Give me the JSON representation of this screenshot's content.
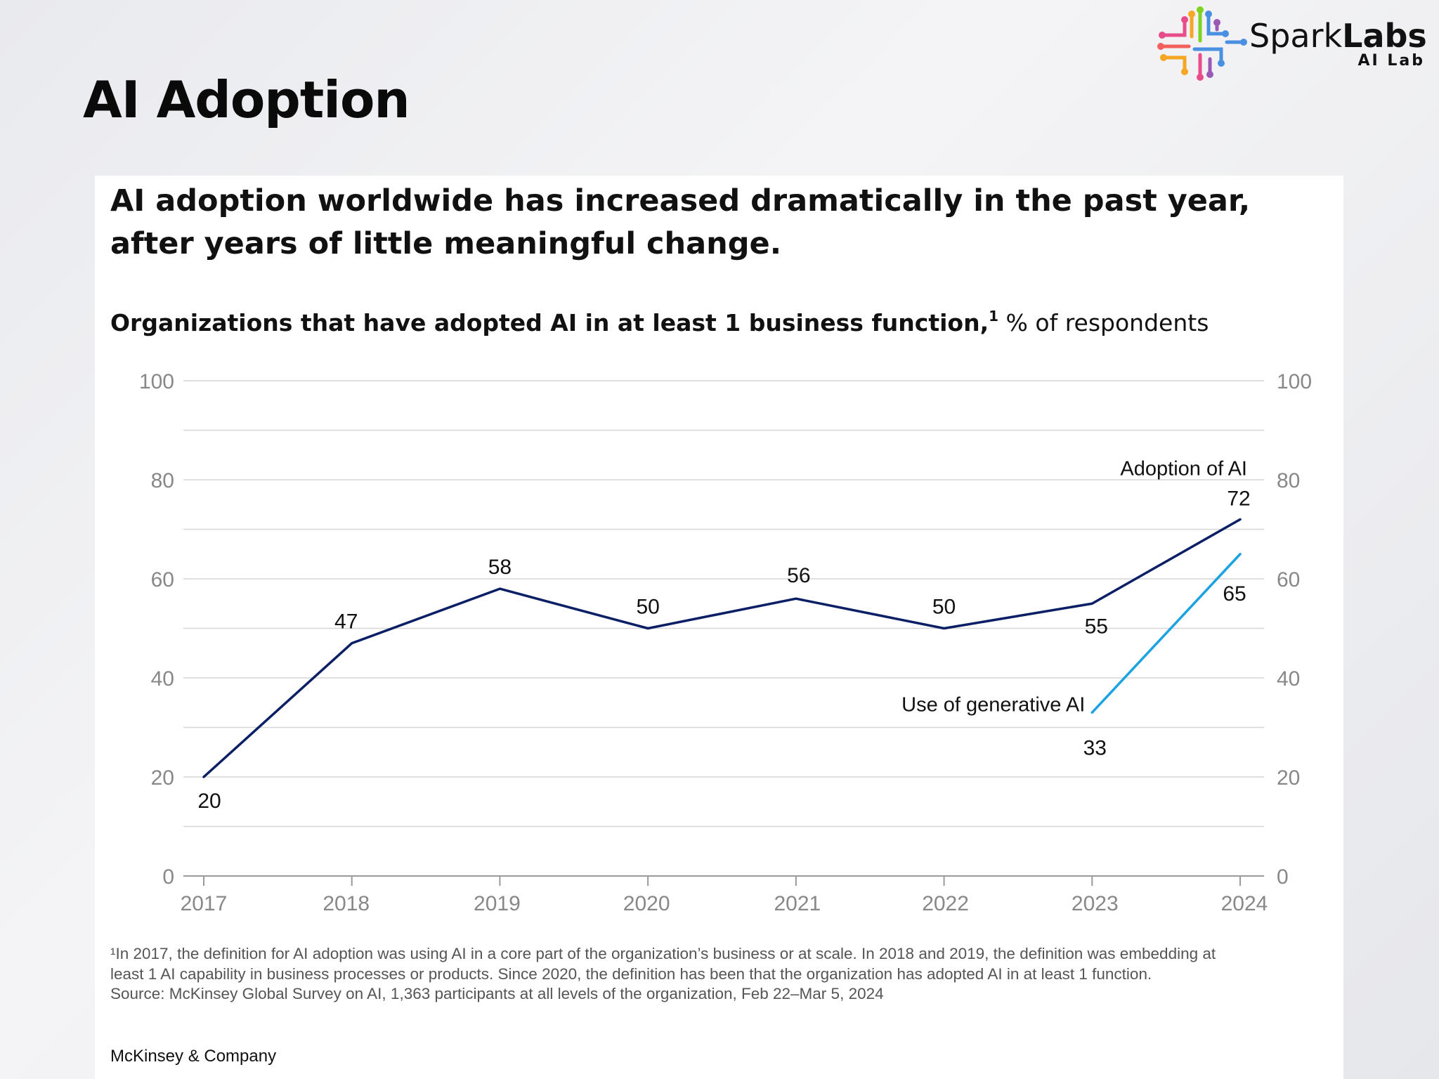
{
  "page_title": "AI Adoption",
  "logo": {
    "name_part1": "Spark",
    "name_part2": "Labs",
    "subtext": "AI Lab",
    "colors": [
      "#e84c8b",
      "#f5a623",
      "#4a90e2",
      "#7ed321",
      "#9b59b6"
    ]
  },
  "card": {
    "headline": "AI adoption worldwide has increased dramatically in the past year, after years of little meaningful change.",
    "subtitle_main": "Organizations that have adopted AI in at least 1 business function,",
    "subtitle_sup": "1",
    "subtitle_unit": " % of respondents",
    "footnotes": [
      "¹In 2017, the definition for AI adoption was using AI in a core part of the organization’s business or at scale. In 2018 and 2019, the definition was embedding at",
      " least 1 AI capability in business processes or products. Since 2020, the definition has been that the organization has adopted AI in at least 1 function.",
      " Source: McKinsey Global Survey on AI, 1,363 participants at all levels of the organization, Feb 22–Mar 5, 2024"
    ],
    "brand": "McKinsey & Company"
  },
  "chart_data": {
    "type": "line",
    "x": [
      "2017",
      "2018",
      "2019",
      "2020",
      "2021",
      "2022",
      "2023",
      "2024"
    ],
    "ylim": [
      0,
      100
    ],
    "yticks": [
      0,
      20,
      40,
      60,
      80,
      100
    ],
    "gridlines": [
      0,
      10,
      20,
      30,
      40,
      50,
      60,
      70,
      80,
      90,
      100
    ],
    "dual_y_axis": true,
    "grid": true,
    "series": [
      {
        "name": "Adoption of AI",
        "color": "#0b1f66",
        "x": [
          "2017",
          "2018",
          "2019",
          "2020",
          "2021",
          "2022",
          "2023",
          "2024"
        ],
        "values": [
          20,
          47,
          58,
          50,
          56,
          50,
          55,
          72
        ]
      },
      {
        "name": "Use of generative AI",
        "color": "#1aa3e0",
        "x": [
          "2023",
          "2024"
        ],
        "values": [
          33,
          65
        ]
      }
    ]
  }
}
